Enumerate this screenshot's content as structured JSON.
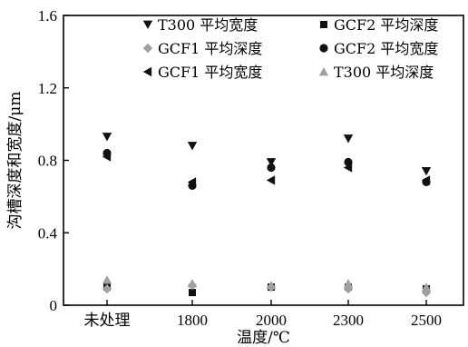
{
  "chart_data": {
    "type": "scatter",
    "title": "",
    "xlabel": "温度/℃",
    "ylabel": "沟槽深度和宽度/μm",
    "categories": [
      "未处理",
      "1800",
      "2000",
      "2300",
      "2500"
    ],
    "ylim": [
      0,
      1.6
    ],
    "yticks": [
      "0",
      "0.4",
      "0.8",
      "1.2",
      "1.6"
    ],
    "grid": false,
    "legend_position": "top",
    "series": [
      {
        "name": "T300 平均宽度",
        "marker": "triangle-down",
        "color": "#111111",
        "values": [
          0.93,
          0.88,
          0.79,
          0.92,
          0.74
        ]
      },
      {
        "name": "GCF2 平均深度",
        "marker": "square",
        "color": "#111111",
        "values": [
          0.1,
          0.07,
          0.1,
          0.1,
          0.09
        ]
      },
      {
        "name": "GCF1 平均深度",
        "marker": "diamond",
        "color": "#a0a0a0",
        "values": [
          0.09,
          0.11,
          0.1,
          0.09,
          0.07
        ]
      },
      {
        "name": "GCF2 平均宽度",
        "marker": "circle",
        "color": "#111111",
        "values": [
          0.84,
          0.66,
          0.76,
          0.79,
          0.68
        ]
      },
      {
        "name": "GCF1 平均宽度",
        "marker": "triangle-left",
        "color": "#111111",
        "values": [
          0.82,
          0.68,
          0.69,
          0.76,
          0.69
        ]
      },
      {
        "name": "T300 平均深度",
        "marker": "triangle-up",
        "color": "#a0a0a0",
        "values": [
          0.14,
          0.12,
          0.11,
          0.12,
          0.1
        ]
      }
    ]
  }
}
